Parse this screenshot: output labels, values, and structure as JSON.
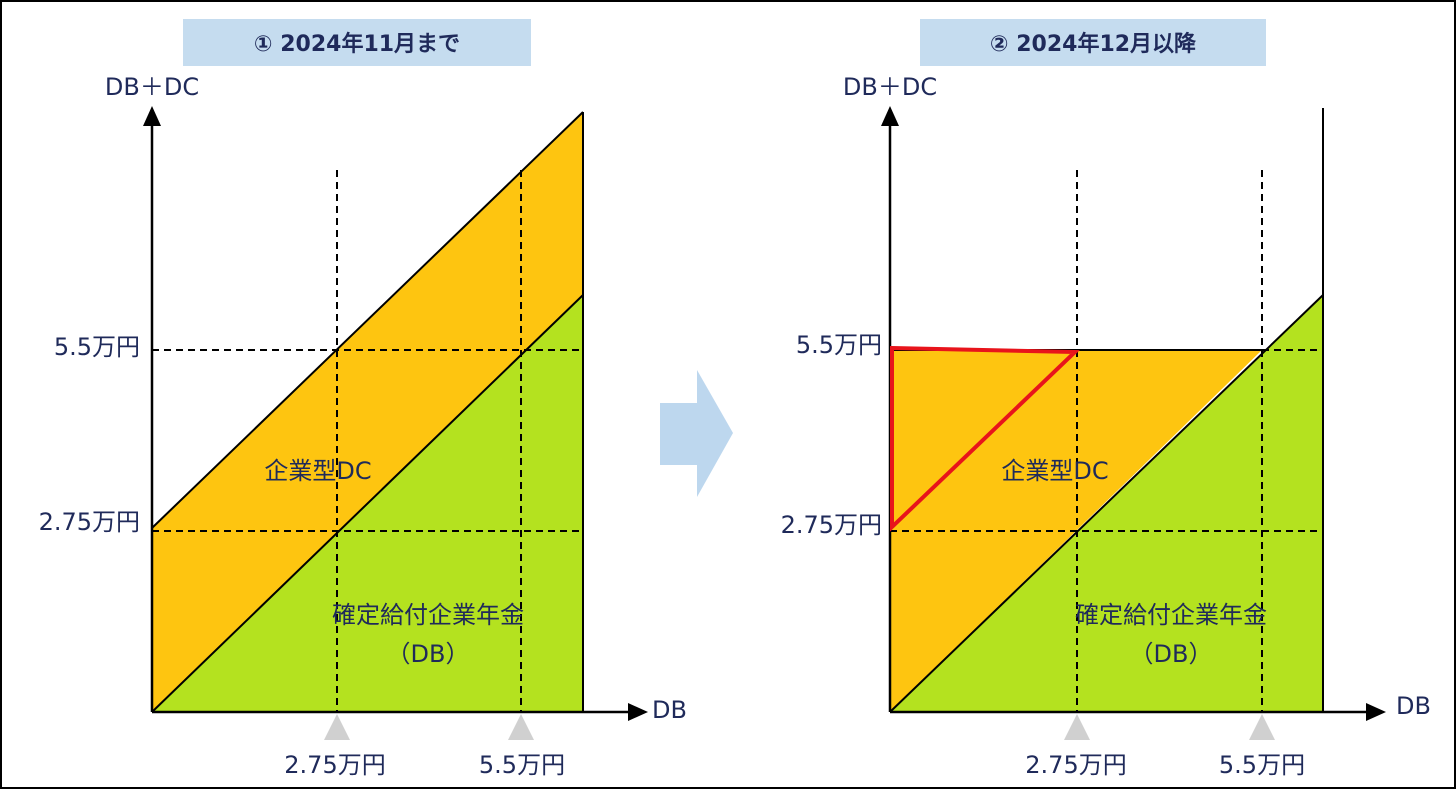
{
  "panels": [
    {
      "title": "① 2024年11月まで",
      "y_axis_label": "DB＋DC",
      "x_axis_label": "DB",
      "y_ticks": [
        "5.5万円",
        "2.75万円"
      ],
      "x_ticks": [
        "2.75万円",
        "5.5万円"
      ],
      "dc_label": "企業型DC",
      "db_label": [
        "確定給付企業年金",
        "（DB）"
      ]
    },
    {
      "title": "② 2024年12月以降",
      "y_axis_label": "DB＋DC",
      "x_axis_label": "DB",
      "y_ticks": [
        "5.5万円",
        "2.75万円"
      ],
      "x_ticks": [
        "2.75万円",
        "5.5万円"
      ],
      "dc_label": "企業型DC",
      "db_label": [
        "確定給付企業年金",
        "（DB）"
      ]
    }
  ]
}
